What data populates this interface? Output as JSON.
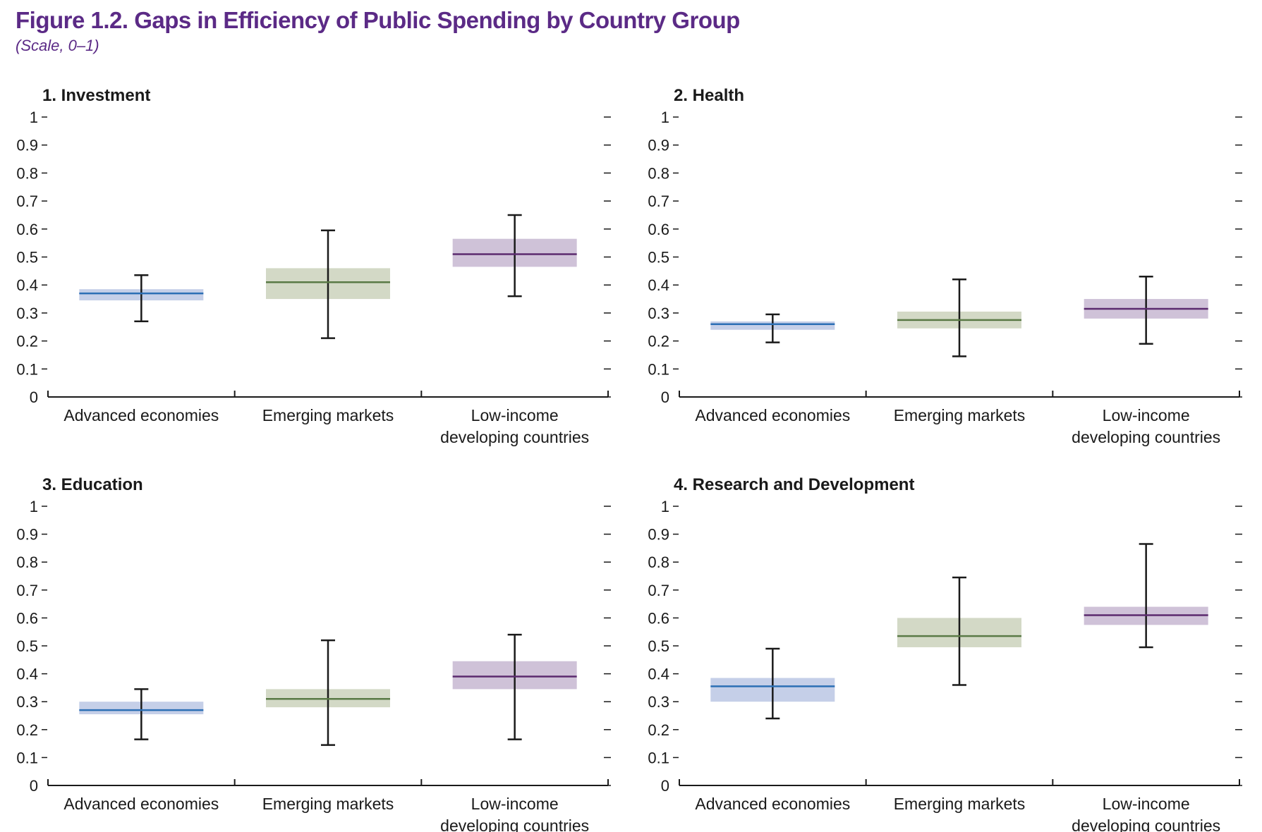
{
  "figure": {
    "title": "Figure 1.2. Gaps in Efficiency of Public Spending by Country Group",
    "subtitle": "(Scale, 0–1)"
  },
  "colors": {
    "title": "#5b2a86",
    "advanced_box": "#c5cfe8",
    "advanced_line": "#2c6fb5",
    "emerging_box": "#d3d9c6",
    "emerging_line": "#5a7a46",
    "lidc_box": "#cfc2d8",
    "lidc_line": "#5b2a6e",
    "axis": "#1a1a1a"
  },
  "chart_data": [
    {
      "type": "boxplot",
      "title": "1. Investment",
      "ylim": [
        0,
        1
      ],
      "yticks": [
        "0",
        "0.1",
        "0.2",
        "0.3",
        "0.4",
        "0.5",
        "0.6",
        "0.7",
        "0.8",
        "0.9",
        "1"
      ],
      "categories": [
        [
          "Advanced economies"
        ],
        [
          "Emerging markets"
        ],
        [
          "Low-income",
          "developing countries"
        ]
      ],
      "series": [
        {
          "name": "Advanced economies",
          "whisker_low": 0.27,
          "q1": 0.345,
          "median": 0.37,
          "q3": 0.385,
          "whisker_high": 0.435
        },
        {
          "name": "Emerging markets",
          "whisker_low": 0.21,
          "q1": 0.35,
          "median": 0.41,
          "q3": 0.46,
          "whisker_high": 0.595
        },
        {
          "name": "Low-income developing countries",
          "whisker_low": 0.36,
          "q1": 0.465,
          "median": 0.51,
          "q3": 0.565,
          "whisker_high": 0.65
        }
      ]
    },
    {
      "type": "boxplot",
      "title": "2. Health",
      "ylim": [
        0,
        1
      ],
      "yticks": [
        "0",
        "0.1",
        "0.2",
        "0.3",
        "0.4",
        "0.5",
        "0.6",
        "0.7",
        "0.8",
        "0.9",
        "1"
      ],
      "categories": [
        [
          "Advanced economies"
        ],
        [
          "Emerging markets"
        ],
        [
          "Low-income",
          "developing countries"
        ]
      ],
      "series": [
        {
          "name": "Advanced economies",
          "whisker_low": 0.195,
          "q1": 0.24,
          "median": 0.26,
          "q3": 0.27,
          "whisker_high": 0.295
        },
        {
          "name": "Emerging markets",
          "whisker_low": 0.145,
          "q1": 0.245,
          "median": 0.275,
          "q3": 0.305,
          "whisker_high": 0.42
        },
        {
          "name": "Low-income developing countries",
          "whisker_low": 0.19,
          "q1": 0.28,
          "median": 0.315,
          "q3": 0.35,
          "whisker_high": 0.43
        }
      ]
    },
    {
      "type": "boxplot",
      "title": "3. Education",
      "ylim": [
        0,
        1
      ],
      "yticks": [
        "0",
        "0.1",
        "0.2",
        "0.3",
        "0.4",
        "0.5",
        "0.6",
        "0.7",
        "0.8",
        "0.9",
        "1"
      ],
      "categories": [
        [
          "Advanced economies"
        ],
        [
          "Emerging markets"
        ],
        [
          "Low-income",
          "developing countries"
        ]
      ],
      "series": [
        {
          "name": "Advanced economies",
          "whisker_low": 0.165,
          "q1": 0.255,
          "median": 0.27,
          "q3": 0.3,
          "whisker_high": 0.345
        },
        {
          "name": "Emerging markets",
          "whisker_low": 0.145,
          "q1": 0.28,
          "median": 0.31,
          "q3": 0.345,
          "whisker_high": 0.52
        },
        {
          "name": "Low-income developing countries",
          "whisker_low": 0.165,
          "q1": 0.345,
          "median": 0.39,
          "q3": 0.445,
          "whisker_high": 0.54
        }
      ]
    },
    {
      "type": "boxplot",
      "title": "4. Research and Development",
      "ylim": [
        0,
        1
      ],
      "yticks": [
        "0",
        "0.1",
        "0.2",
        "0.3",
        "0.4",
        "0.5",
        "0.6",
        "0.7",
        "0.8",
        "0.9",
        "1"
      ],
      "categories": [
        [
          "Advanced economies"
        ],
        [
          "Emerging markets"
        ],
        [
          "Low-income",
          "developing countries"
        ]
      ],
      "series": [
        {
          "name": "Advanced economies",
          "whisker_low": 0.24,
          "q1": 0.3,
          "median": 0.355,
          "q3": 0.385,
          "whisker_high": 0.49
        },
        {
          "name": "Emerging markets",
          "whisker_low": 0.36,
          "q1": 0.495,
          "median": 0.535,
          "q3": 0.6,
          "whisker_high": 0.745
        },
        {
          "name": "Low-income developing countries",
          "whisker_low": 0.495,
          "q1": 0.575,
          "median": 0.61,
          "q3": 0.64,
          "whisker_high": 0.865
        }
      ]
    }
  ]
}
